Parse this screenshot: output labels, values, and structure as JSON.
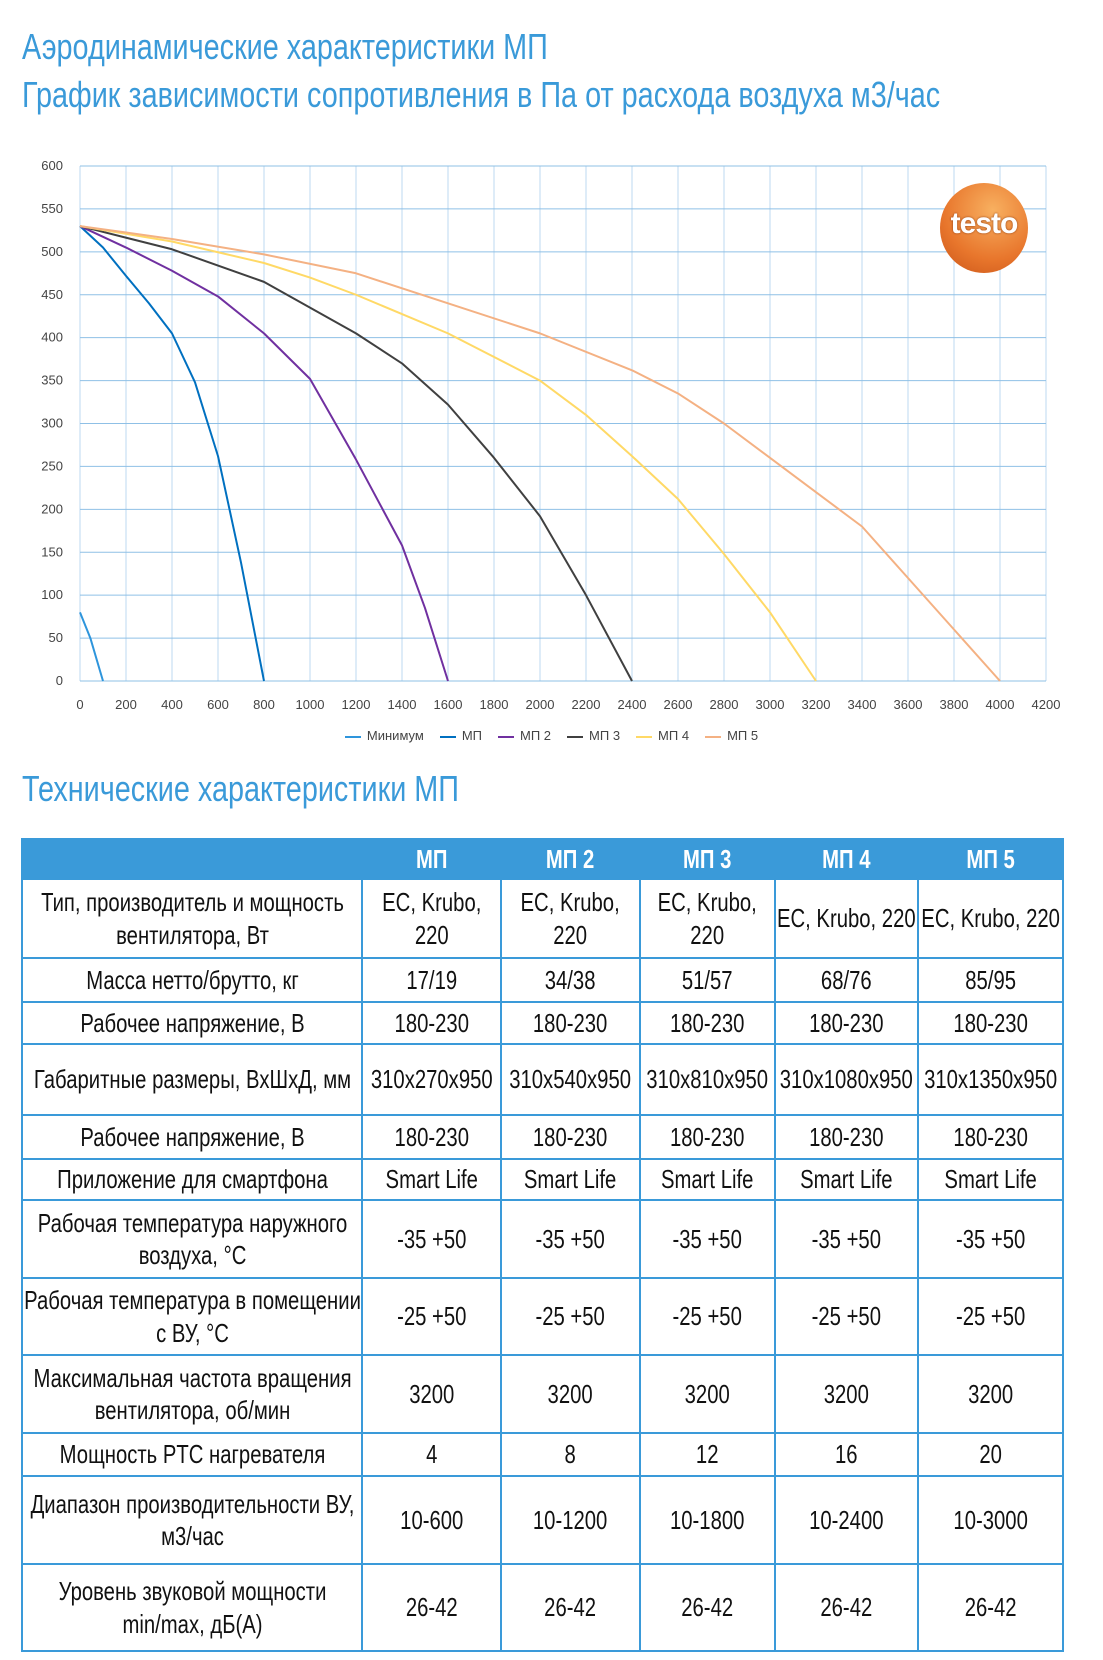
{
  "header": {
    "title_line1": "Аэродинамические характеристики МП",
    "title_line2": "График зависимости сопротивления в Па от расхода воздуха м3/час"
  },
  "logo": {
    "text": "testo"
  },
  "chart_data": {
    "type": "line",
    "title": "График зависимости сопротивления в Па от расхода воздуха м3/час",
    "xlabel": "",
    "ylabel": "",
    "xlim": [
      0,
      4200
    ],
    "ylim": [
      0,
      600
    ],
    "xticks": [
      0,
      200,
      400,
      600,
      800,
      1000,
      1200,
      1400,
      1600,
      1800,
      2000,
      2200,
      2400,
      2600,
      2800,
      3000,
      3200,
      3400,
      3600,
      3800,
      4000,
      4200
    ],
    "yticks": [
      0,
      50,
      100,
      150,
      200,
      250,
      300,
      350,
      400,
      450,
      500,
      550,
      600
    ],
    "grid": true,
    "legend_position": "bottom",
    "series": [
      {
        "name": "Минимум",
        "color": "#2e95dc",
        "points": [
          [
            0,
            80
          ],
          [
            45,
            50
          ],
          [
            100,
            0
          ]
        ]
      },
      {
        "name": "МП",
        "color": "#0070c0",
        "points": [
          [
            0,
            530
          ],
          [
            100,
            505
          ],
          [
            200,
            472
          ],
          [
            300,
            440
          ],
          [
            400,
            405
          ],
          [
            500,
            348
          ],
          [
            600,
            262
          ],
          [
            700,
            138
          ],
          [
            800,
            0
          ]
        ]
      },
      {
        "name": "МП 2",
        "color": "#7030a0",
        "points": [
          [
            0,
            530
          ],
          [
            200,
            505
          ],
          [
            400,
            478
          ],
          [
            600,
            448
          ],
          [
            800,
            405
          ],
          [
            1000,
            352
          ],
          [
            1200,
            258
          ],
          [
            1400,
            158
          ],
          [
            1500,
            85
          ],
          [
            1600,
            0
          ]
        ]
      },
      {
        "name": "МП 3",
        "color": "#404040",
        "points": [
          [
            0,
            530
          ],
          [
            400,
            503
          ],
          [
            800,
            465
          ],
          [
            1000,
            435
          ],
          [
            1200,
            405
          ],
          [
            1400,
            370
          ],
          [
            1600,
            322
          ],
          [
            1800,
            260
          ],
          [
            2000,
            192
          ],
          [
            2200,
            100
          ],
          [
            2400,
            0
          ]
        ]
      },
      {
        "name": "МП 4",
        "color": "#ffd966",
        "points": [
          [
            0,
            530
          ],
          [
            400,
            512
          ],
          [
            800,
            487
          ],
          [
            1000,
            470
          ],
          [
            1200,
            450
          ],
          [
            1600,
            405
          ],
          [
            2000,
            350
          ],
          [
            2200,
            310
          ],
          [
            2400,
            262
          ],
          [
            2600,
            212
          ],
          [
            2700,
            180
          ],
          [
            2800,
            148
          ],
          [
            3000,
            80
          ],
          [
            3200,
            0
          ]
        ]
      },
      {
        "name": "МП 5",
        "color": "#f4b183",
        "points": [
          [
            0,
            530
          ],
          [
            400,
            515
          ],
          [
            800,
            497
          ],
          [
            1200,
            475
          ],
          [
            1600,
            440
          ],
          [
            2000,
            405
          ],
          [
            2400,
            362
          ],
          [
            2600,
            335
          ],
          [
            2800,
            300
          ],
          [
            3000,
            260
          ],
          [
            3200,
            220
          ],
          [
            3400,
            180
          ],
          [
            3600,
            120
          ],
          [
            3800,
            60
          ],
          [
            4000,
            0
          ]
        ]
      }
    ]
  },
  "specs": {
    "title": "Технические характеристики МП",
    "columns": [
      "",
      "МП",
      "МП 2",
      "МП 3",
      "МП 4",
      "МП 5"
    ],
    "rows": [
      {
        "label": "Тип, производитель и мощность вентилятора, Вт",
        "values": [
          "EC, Krubo, 220",
          "EC, Krubo, 220",
          "EC, Krubo, 220",
          "EC, Krubo, 220",
          "EC, Krubo, 220"
        ]
      },
      {
        "label": "Масса нетто/брутто, кг",
        "values": [
          "17/19",
          "34/38",
          "51/57",
          "68/76",
          "85/95"
        ]
      },
      {
        "label": "Рабочее напряжение, В",
        "values": [
          "180-230",
          "180-230",
          "180-230",
          "180-230",
          "180-230"
        ]
      },
      {
        "label": "Габаритные размеры, ВхШхД, мм",
        "values": [
          "310x270x950",
          "310x540x950",
          "310x810x950",
          "310x1080x950",
          "310x1350x950"
        ]
      },
      {
        "label": "Рабочее напряжение, В",
        "values": [
          "180-230",
          "180-230",
          "180-230",
          "180-230",
          "180-230"
        ]
      },
      {
        "label": "Приложение для смартфона",
        "values": [
          "Smart Life",
          "Smart Life",
          "Smart Life",
          "Smart Life",
          "Smart Life"
        ]
      },
      {
        "label": "Рабочая температура наружного воздуха, °С",
        "values": [
          "-35 +50",
          "-35 +50",
          "-35 +50",
          "-35 +50",
          "-35 +50"
        ]
      },
      {
        "label": "Рабочая температура в помещении с ВУ, °С",
        "values": [
          "-25 +50",
          "-25 +50",
          "-25 +50",
          "-25 +50",
          "-25 +50"
        ]
      },
      {
        "label": "Максимальная частота вращения вентилятора, об/мин",
        "values": [
          "3200",
          "3200",
          "3200",
          "3200",
          "3200"
        ]
      },
      {
        "label": "Мощность PTC нагревателя",
        "values": [
          "4",
          "8",
          "12",
          "16",
          "20"
        ]
      },
      {
        "label": "Диапазон производительности ВУ, м3/час",
        "values": [
          "10-600",
          "10-1200",
          "10-1800",
          "10-2400",
          "10-3000"
        ]
      },
      {
        "label": "Уровень звуковой мощности min/max, дБ(А)",
        "values": [
          "26-42",
          "26-42",
          "26-42",
          "26-42",
          "26-42"
        ]
      }
    ]
  }
}
